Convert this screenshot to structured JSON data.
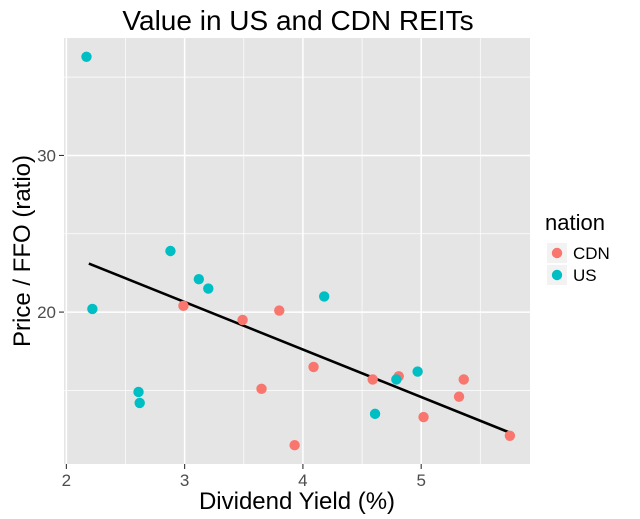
{
  "chart_data": {
    "type": "scatter",
    "title": "Value in US and CDN REITs",
    "xlabel": "Dividend Yield (%)",
    "ylabel": "Price / FFO (ratio)",
    "xlim": [
      1.98,
      5.92
    ],
    "ylim": [
      10.3,
      37.5
    ],
    "x_ticks": [
      2,
      3,
      4,
      5
    ],
    "x_minor_ticks": [
      2.5,
      3.5,
      4.5,
      5.5
    ],
    "y_ticks": [
      20,
      30
    ],
    "y_minor_ticks": [
      15,
      25,
      35
    ],
    "grid": true,
    "legend": {
      "title": "nation",
      "position": "right",
      "entries": [
        {
          "label": "CDN",
          "color": "#F8766D"
        },
        {
          "label": "US",
          "color": "#00BFC4"
        }
      ]
    },
    "series": [
      {
        "name": "CDN",
        "color": "#F8766D",
        "points": [
          {
            "x": 2.99,
            "y": 20.4
          },
          {
            "x": 3.49,
            "y": 19.5
          },
          {
            "x": 3.65,
            "y": 15.1
          },
          {
            "x": 3.8,
            "y": 20.1
          },
          {
            "x": 3.93,
            "y": 11.5
          },
          {
            "x": 4.09,
            "y": 16.5
          },
          {
            "x": 4.59,
            "y": 15.7
          },
          {
            "x": 4.81,
            "y": 15.9
          },
          {
            "x": 5.02,
            "y": 13.3
          },
          {
            "x": 5.32,
            "y": 14.6
          },
          {
            "x": 5.36,
            "y": 15.7
          },
          {
            "x": 5.75,
            "y": 12.1
          }
        ]
      },
      {
        "name": "US",
        "color": "#00BFC4",
        "points": [
          {
            "x": 2.17,
            "y": 36.3
          },
          {
            "x": 2.22,
            "y": 20.2
          },
          {
            "x": 2.61,
            "y": 14.9
          },
          {
            "x": 2.62,
            "y": 14.2
          },
          {
            "x": 2.88,
            "y": 23.9
          },
          {
            "x": 3.12,
            "y": 22.1
          },
          {
            "x": 3.2,
            "y": 21.5
          },
          {
            "x": 4.18,
            "y": 21.0
          },
          {
            "x": 4.61,
            "y": 13.5
          },
          {
            "x": 4.79,
            "y": 15.7
          },
          {
            "x": 4.97,
            "y": 16.2
          }
        ]
      }
    ],
    "fit_line": {
      "type": "linear",
      "x": [
        2.19,
        5.75
      ],
      "y": [
        23.1,
        12.3
      ],
      "color": "#000000"
    },
    "colors": {
      "panel": "#E5E5E5",
      "grid": "#FFFFFF",
      "tick_label": "#4D4D4D",
      "fit": "#000000"
    }
  }
}
